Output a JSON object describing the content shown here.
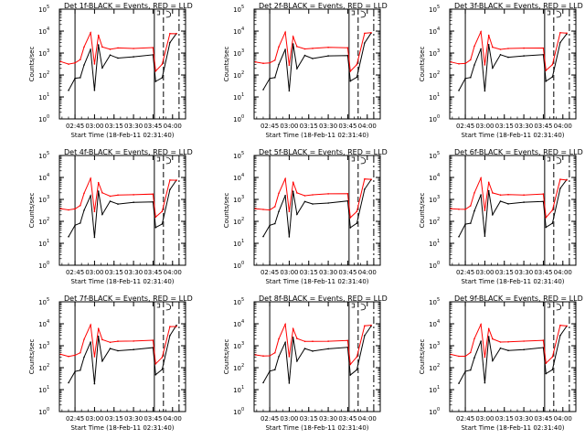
{
  "figure": {
    "x_axis_title": "Start Time (18-Feb-11 02:31:40)",
    "y_axis_title": "Counts/sec",
    "x_tick_labels": [
      "02:45",
      "03:00",
      "03:15",
      "03:30",
      "03:45",
      "04:00"
    ],
    "y_tick_labels": [
      "10",
      "10",
      "10",
      "10",
      "10",
      "10"
    ],
    "y_tick_exponents": [
      "0",
      "1",
      "2",
      "3",
      "4",
      "5"
    ],
    "colors": {
      "events": "#000000",
      "lld": "#ff0000",
      "background": "#ffffff"
    }
  },
  "chart_data": [
    {
      "type": "line",
      "title": "Det 1f-BLACK = Events, RED = LLD",
      "ylog": true,
      "ylim": [
        1,
        100000
      ],
      "x_ticks": [
        "02:45",
        "03:00",
        "03:15",
        "03:30",
        "03:45",
        "04:00"
      ],
      "series": [
        {
          "name": "Events",
          "color": "#000000",
          "x": [
            "02:40",
            "02:45",
            "02:49",
            "02:52",
            "02:57",
            "03:00",
            "03:03",
            "03:06",
            "03:12",
            "03:18",
            "03:30",
            "03:45",
            "03:47",
            "03:52",
            "03:58",
            "04:03"
          ],
          "values": [
            20,
            70,
            80,
            300,
            1500,
            20,
            2500,
            200,
            800,
            600,
            700,
            800,
            50,
            80,
            3000,
            8000
          ]
        },
        {
          "name": "LLD",
          "color": "#ff0000",
          "x": [
            "02:34",
            "02:40",
            "02:45",
            "02:49",
            "02:52",
            "02:57",
            "03:00",
            "03:03",
            "03:06",
            "03:12",
            "03:18",
            "03:30",
            "03:45",
            "03:47",
            "03:52",
            "03:58",
            "04:03"
          ],
          "values": [
            400,
            330,
            350,
            500,
            2000,
            9000,
            300,
            6000,
            2000,
            1500,
            1600,
            1700,
            1800,
            150,
            300,
            8000,
            8000
          ]
        }
      ]
    },
    {
      "type": "line",
      "title": "Det 2f-BLACK = Events, RED = LLD",
      "ylog": true,
      "ylim": [
        1,
        100000
      ],
      "x_ticks": [
        "02:45",
        "03:00",
        "03:15",
        "03:30",
        "03:45",
        "04:00"
      ],
      "series": [
        {
          "name": "Events",
          "color": "#000000",
          "values": [
            20,
            70,
            80,
            300,
            1500,
            20,
            2500,
            200,
            800,
            600,
            700,
            800,
            50,
            80,
            3000,
            8000
          ]
        },
        {
          "name": "LLD",
          "color": "#ff0000",
          "values": [
            400,
            330,
            350,
            500,
            2000,
            9000,
            300,
            6000,
            2000,
            1500,
            1600,
            1700,
            1800,
            150,
            300,
            8000,
            8000
          ]
        }
      ]
    },
    {
      "type": "line",
      "title": "Det 3f-BLACK = Events, RED = LLD",
      "ylog": true,
      "ylim": [
        1,
        100000
      ],
      "x_ticks": [
        "02:45",
        "03:00",
        "03:15",
        "03:30",
        "03:45",
        "04:00"
      ],
      "series": [
        {
          "name": "Events",
          "color": "#000000",
          "values": [
            20,
            70,
            80,
            300,
            1500,
            20,
            2500,
            200,
            800,
            600,
            700,
            800,
            50,
            80,
            3000,
            8000
          ]
        },
        {
          "name": "LLD",
          "color": "#ff0000",
          "values": [
            400,
            330,
            350,
            500,
            2000,
            9000,
            300,
            6000,
            2000,
            1500,
            1600,
            1700,
            1800,
            150,
            300,
            8000,
            8000
          ]
        }
      ]
    },
    {
      "type": "line",
      "title": "Det 4f-BLACK = Events, RED = LLD",
      "ylog": true,
      "ylim": [
        1,
        100000
      ],
      "x_ticks": [
        "02:45",
        "03:00",
        "03:15",
        "03:30",
        "03:45",
        "04:00"
      ],
      "series": [
        {
          "name": "Events",
          "color": "#000000",
          "values": [
            20,
            70,
            80,
            300,
            1500,
            20,
            2500,
            200,
            800,
            600,
            700,
            800,
            50,
            80,
            3000,
            8000
          ]
        },
        {
          "name": "LLD",
          "color": "#ff0000",
          "values": [
            400,
            330,
            350,
            500,
            2000,
            9000,
            300,
            6000,
            2000,
            1500,
            1600,
            1700,
            1800,
            150,
            300,
            8000,
            8000
          ]
        }
      ]
    },
    {
      "type": "line",
      "title": "Det 5f-BLACK = Events, RED = LLD",
      "ylog": true,
      "ylim": [
        1,
        100000
      ],
      "x_ticks": [
        "02:45",
        "03:00",
        "03:15",
        "03:30",
        "03:45",
        "04:00"
      ],
      "series": [
        {
          "name": "Events",
          "color": "#000000",
          "values": [
            20,
            70,
            80,
            300,
            1500,
            20,
            2500,
            200,
            800,
            600,
            700,
            800,
            50,
            80,
            3000,
            8000
          ]
        },
        {
          "name": "LLD",
          "color": "#ff0000",
          "values": [
            400,
            330,
            350,
            500,
            2000,
            9000,
            300,
            6000,
            2000,
            1500,
            1600,
            1700,
            1800,
            150,
            300,
            8000,
            8000
          ]
        }
      ]
    },
    {
      "type": "line",
      "title": "Det 6f-BLACK = Events, RED = LLD",
      "ylog": true,
      "ylim": [
        1,
        100000
      ],
      "x_ticks": [
        "02:45",
        "03:00",
        "03:15",
        "03:30",
        "03:45",
        "04:00"
      ],
      "series": [
        {
          "name": "Events",
          "color": "#000000",
          "values": [
            20,
            70,
            80,
            300,
            1500,
            20,
            2500,
            200,
            800,
            600,
            700,
            800,
            50,
            80,
            3000,
            8000
          ]
        },
        {
          "name": "LLD",
          "color": "#ff0000",
          "values": [
            400,
            330,
            350,
            500,
            2000,
            9000,
            300,
            6000,
            2000,
            1500,
            1600,
            1700,
            1800,
            150,
            300,
            8000,
            8000
          ]
        }
      ]
    },
    {
      "type": "line",
      "title": "Det 7f-BLACK = Events, RED = LLD",
      "ylog": true,
      "ylim": [
        1,
        100000
      ],
      "x_ticks": [
        "02:45",
        "03:00",
        "03:15",
        "03:30",
        "03:45",
        "04:00"
      ],
      "series": [
        {
          "name": "Events",
          "color": "#000000",
          "values": [
            20,
            70,
            80,
            300,
            1500,
            20,
            2500,
            200,
            800,
            600,
            700,
            800,
            50,
            80,
            3000,
            8000
          ]
        },
        {
          "name": "LLD",
          "color": "#ff0000",
          "values": [
            400,
            330,
            350,
            500,
            2000,
            9000,
            300,
            6000,
            2000,
            1500,
            1600,
            1700,
            1800,
            150,
            300,
            8000,
            8000
          ]
        }
      ]
    },
    {
      "type": "line",
      "title": "Det 8f-BLACK = Events, RED = LLD",
      "ylog": true,
      "ylim": [
        1,
        100000
      ],
      "x_ticks": [
        "02:45",
        "03:00",
        "03:15",
        "03:30",
        "03:45",
        "04:00"
      ],
      "series": [
        {
          "name": "Events",
          "color": "#000000",
          "values": [
            20,
            70,
            80,
            300,
            1500,
            20,
            2500,
            200,
            800,
            600,
            700,
            800,
            50,
            80,
            3000,
            8000
          ]
        },
        {
          "name": "LLD",
          "color": "#ff0000",
          "values": [
            400,
            330,
            350,
            500,
            2000,
            9000,
            300,
            6000,
            2000,
            1500,
            1600,
            1700,
            1800,
            150,
            300,
            8000,
            8000
          ]
        }
      ]
    },
    {
      "type": "line",
      "title": "Det 9f-BLACK = Events, RED = LLD",
      "ylog": true,
      "ylim": [
        1,
        100000
      ],
      "x_ticks": [
        "02:45",
        "03:00",
        "03:15",
        "03:30",
        "03:45",
        "04:00"
      ],
      "series": [
        {
          "name": "Events",
          "color": "#000000",
          "values": [
            20,
            70,
            80,
            300,
            1500,
            20,
            2500,
            200,
            800,
            600,
            700,
            800,
            50,
            80,
            3000,
            8000
          ]
        },
        {
          "name": "LLD",
          "color": "#ff0000",
          "values": [
            400,
            330,
            350,
            500,
            2000,
            9000,
            300,
            6000,
            2000,
            1500,
            1600,
            1700,
            1800,
            150,
            300,
            8000,
            8000
          ]
        }
      ]
    }
  ]
}
